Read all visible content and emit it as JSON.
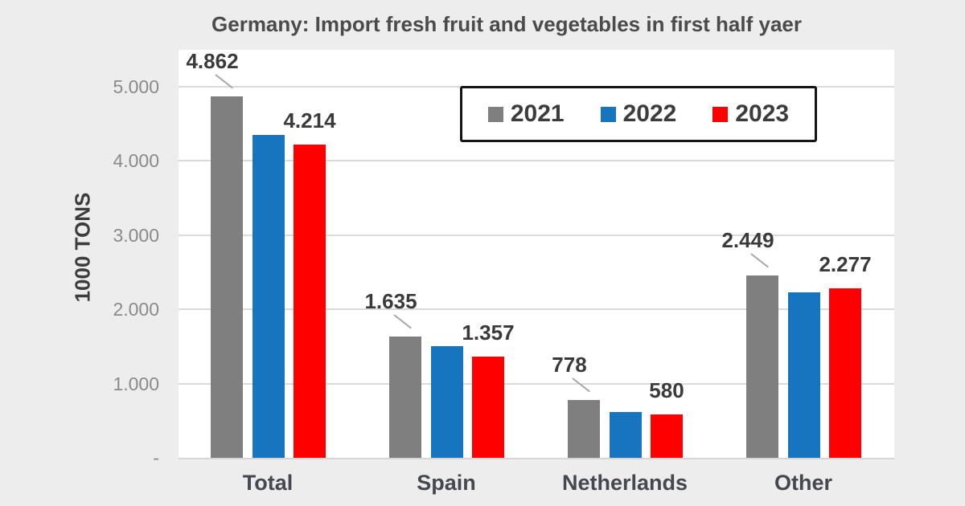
{
  "title": "Germany: Import fresh fruit and vegetables in first half yaer",
  "y_axis": {
    "label": "1000 TONS",
    "ticks": [
      {
        "label": "5.000",
        "value": 5000
      },
      {
        "label": "4.000",
        "value": 4000
      },
      {
        "label": "3.000",
        "value": 3000
      },
      {
        "label": "2.000",
        "value": 2000
      },
      {
        "label": "1.000",
        "value": 1000
      },
      {
        "label": "-",
        "value": 0
      }
    ]
  },
  "x_axis": {
    "categories": [
      "Total",
      "Spain",
      "Netherlands",
      "Other"
    ]
  },
  "legend": {
    "items": [
      {
        "label": "2021",
        "color": "#7F7F7F"
      },
      {
        "label": "2022",
        "color": "#1774BE"
      },
      {
        "label": "2023",
        "color": "#FE0000"
      }
    ]
  },
  "chart_data": {
    "type": "bar",
    "title": "Germany: Import fresh fruit and vegetables in first half yaer",
    "xlabel": "",
    "ylabel": "1000 TONS",
    "ylim": [
      0,
      5500
    ],
    "yticks": [
      0,
      1000,
      2000,
      3000,
      4000,
      5000
    ],
    "grid": true,
    "legend_position": "top center, inside plot, boxed",
    "categories": [
      "Total",
      "Spain",
      "Netherlands",
      "Other"
    ],
    "series": [
      {
        "name": "2021",
        "color": "#7F7F7F",
        "values": [
          4862,
          1635,
          778,
          2449
        ],
        "data_labels": [
          "4.862",
          "1.635",
          "778",
          "2.449"
        ],
        "labels_have_leader_lines": true
      },
      {
        "name": "2022",
        "color": "#1774BE",
        "values": [
          4350,
          1500,
          620,
          2230
        ],
        "data_labels": [
          "",
          "",
          "",
          ""
        ],
        "values_estimated_from_bar_heights": true
      },
      {
        "name": "2023",
        "color": "#FE0000",
        "values": [
          4214,
          1357,
          580,
          2277
        ],
        "data_labels": [
          "4.214",
          "1.357",
          "580",
          "2.277"
        ]
      }
    ]
  },
  "colors": {
    "background": "#EDEDED",
    "plot_background": "#FFFFFF",
    "gridline": "#DADADA",
    "axis_line": "#D5D5D5",
    "title_text": "#4B4B4B",
    "tick_text": "#8A8A8A",
    "category_text": "#45484E",
    "value_label_text": "#3A3A3A",
    "legend_border": "#141414",
    "leader_line": "#A6A6A6"
  }
}
